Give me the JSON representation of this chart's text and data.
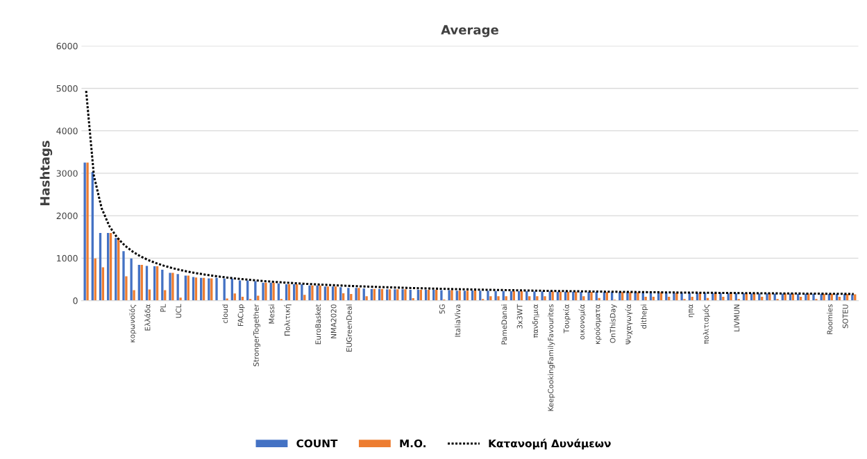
{
  "chart_data": {
    "type": "bar",
    "title": "Average",
    "ylabel": "Hashtags",
    "categories": [
      null,
      null,
      null,
      null,
      null,
      null,
      "κορωνοϊός",
      null,
      "Ελλάδα",
      null,
      "PL",
      null,
      "UCL",
      null,
      null,
      null,
      null,
      null,
      "cloud",
      null,
      "FACup",
      null,
      "StrongerTogether",
      null,
      "Messi",
      null,
      "Πολιτική",
      null,
      null,
      null,
      "EuroBasket",
      null,
      "NMA2020",
      null,
      "EUGreenDeal",
      null,
      null,
      null,
      null,
      null,
      null,
      null,
      null,
      null,
      null,
      null,
      "5G",
      null,
      "ItaliaViva",
      null,
      null,
      null,
      null,
      null,
      "PameDanai",
      null,
      "3x3WT",
      null,
      "πανδημια",
      null,
      "KeepCookingFamilyFavourites",
      null,
      "Τουρκία",
      null,
      "οικονομία",
      null,
      "κρούσματα",
      null,
      "OnThisDay",
      null,
      "Ψυχαγωγία",
      null,
      "dithepi",
      null,
      null,
      null,
      null,
      null,
      "ηπα",
      null,
      "πολιτισμός",
      null,
      null,
      null,
      "LIVMUN",
      null,
      null,
      null,
      null,
      null,
      null,
      null,
      null,
      null,
      null,
      null,
      "Roomies",
      null,
      "SOTEU",
      null
    ],
    "series": [
      {
        "name": "COUNT",
        "color": "#4472c4",
        "values": [
          3250,
          3030,
          1595,
          1595,
          1475,
          1164,
          995,
          842,
          820,
          809,
          727,
          656,
          628,
          590,
          557,
          536,
          525,
          536,
          519,
          519,
          475,
          475,
          459,
          421,
          421,
          408,
          386,
          386,
          386,
          359,
          359,
          332,
          332,
          315,
          299,
          299,
          288,
          277,
          277,
          266,
          266,
          266,
          255,
          255,
          255,
          255,
          245,
          245,
          234,
          234,
          239,
          234,
          234,
          228,
          228,
          223,
          223,
          223,
          217,
          217,
          217,
          212,
          212,
          212,
          207,
          207,
          207,
          201,
          201,
          201,
          201,
          196,
          196,
          196,
          196,
          190,
          190,
          185,
          185,
          185,
          180,
          180,
          180,
          175,
          175,
          175,
          170,
          170,
          170,
          165,
          165,
          165,
          160,
          160,
          160,
          160,
          155,
          155,
          155,
          150
        ]
      },
      {
        "name": "M.O.",
        "color": "#ed7d31",
        "values": [
          3250,
          995,
          787,
          1595,
          1475,
          574,
          246,
          842,
          262,
          809,
          246,
          656,
          71,
          590,
          546,
          536,
          525,
          null,
          49,
          169,
          93,
          38,
          115,
          421,
          421,
          38,
          386,
          386,
          136,
          359,
          359,
          332,
          332,
          174,
          158,
          299,
          103,
          277,
          277,
          266,
          266,
          266,
          60,
          255,
          255,
          255,
          27,
          245,
          234,
          234,
          239,
          38,
          103,
          103,
          103,
          223,
          223,
          103,
          103,
          103,
          217,
          212,
          212,
          212,
          103,
          207,
          65,
          201,
          22,
          201,
          201,
          196,
          92,
          92,
          196,
          92,
          190,
          38,
          92,
          185,
          65,
          180,
          92,
          180,
          38,
          175,
          175,
          92,
          170,
          38,
          170,
          165,
          92,
          165,
          38,
          160,
          160,
          92,
          155,
          150
        ]
      },
      {
        "name": "Κατανομή Δυνάμεων",
        "type": "line",
        "color": "#000000",
        "line_style": "dotted",
        "marker": "none",
        "values": [
          4940,
          2943,
          2174,
          1753,
          1484,
          1296,
          1155,
          1044,
          957,
          885,
          824,
          772,
          727,
          688,
          654,
          623,
          595,
          570,
          548,
          527,
          508,
          491,
          475,
          460,
          446,
          433,
          421,
          410,
          399,
          389,
          380,
          371,
          363,
          355,
          347,
          340,
          333,
          326,
          320,
          314,
          308,
          303,
          297,
          292,
          288,
          283,
          279,
          274,
          270,
          266,
          262,
          258,
          255,
          251,
          248,
          245,
          242,
          238,
          235,
          232,
          229,
          227,
          224,
          221,
          219,
          216,
          214,
          211,
          209,
          207,
          205,
          203,
          200,
          198,
          196,
          194,
          192,
          190,
          189,
          187,
          185,
          184,
          182,
          181,
          179,
          177,
          176,
          174,
          173,
          171,
          170,
          169,
          167,
          166,
          165,
          163,
          162,
          161,
          159,
          158
        ]
      }
    ],
    "ylim": [
      0,
      6000
    ],
    "yticks": [
      0,
      1000,
      2000,
      3000,
      4000,
      5000,
      6000
    ],
    "grid": "y",
    "legend": "bottom"
  }
}
